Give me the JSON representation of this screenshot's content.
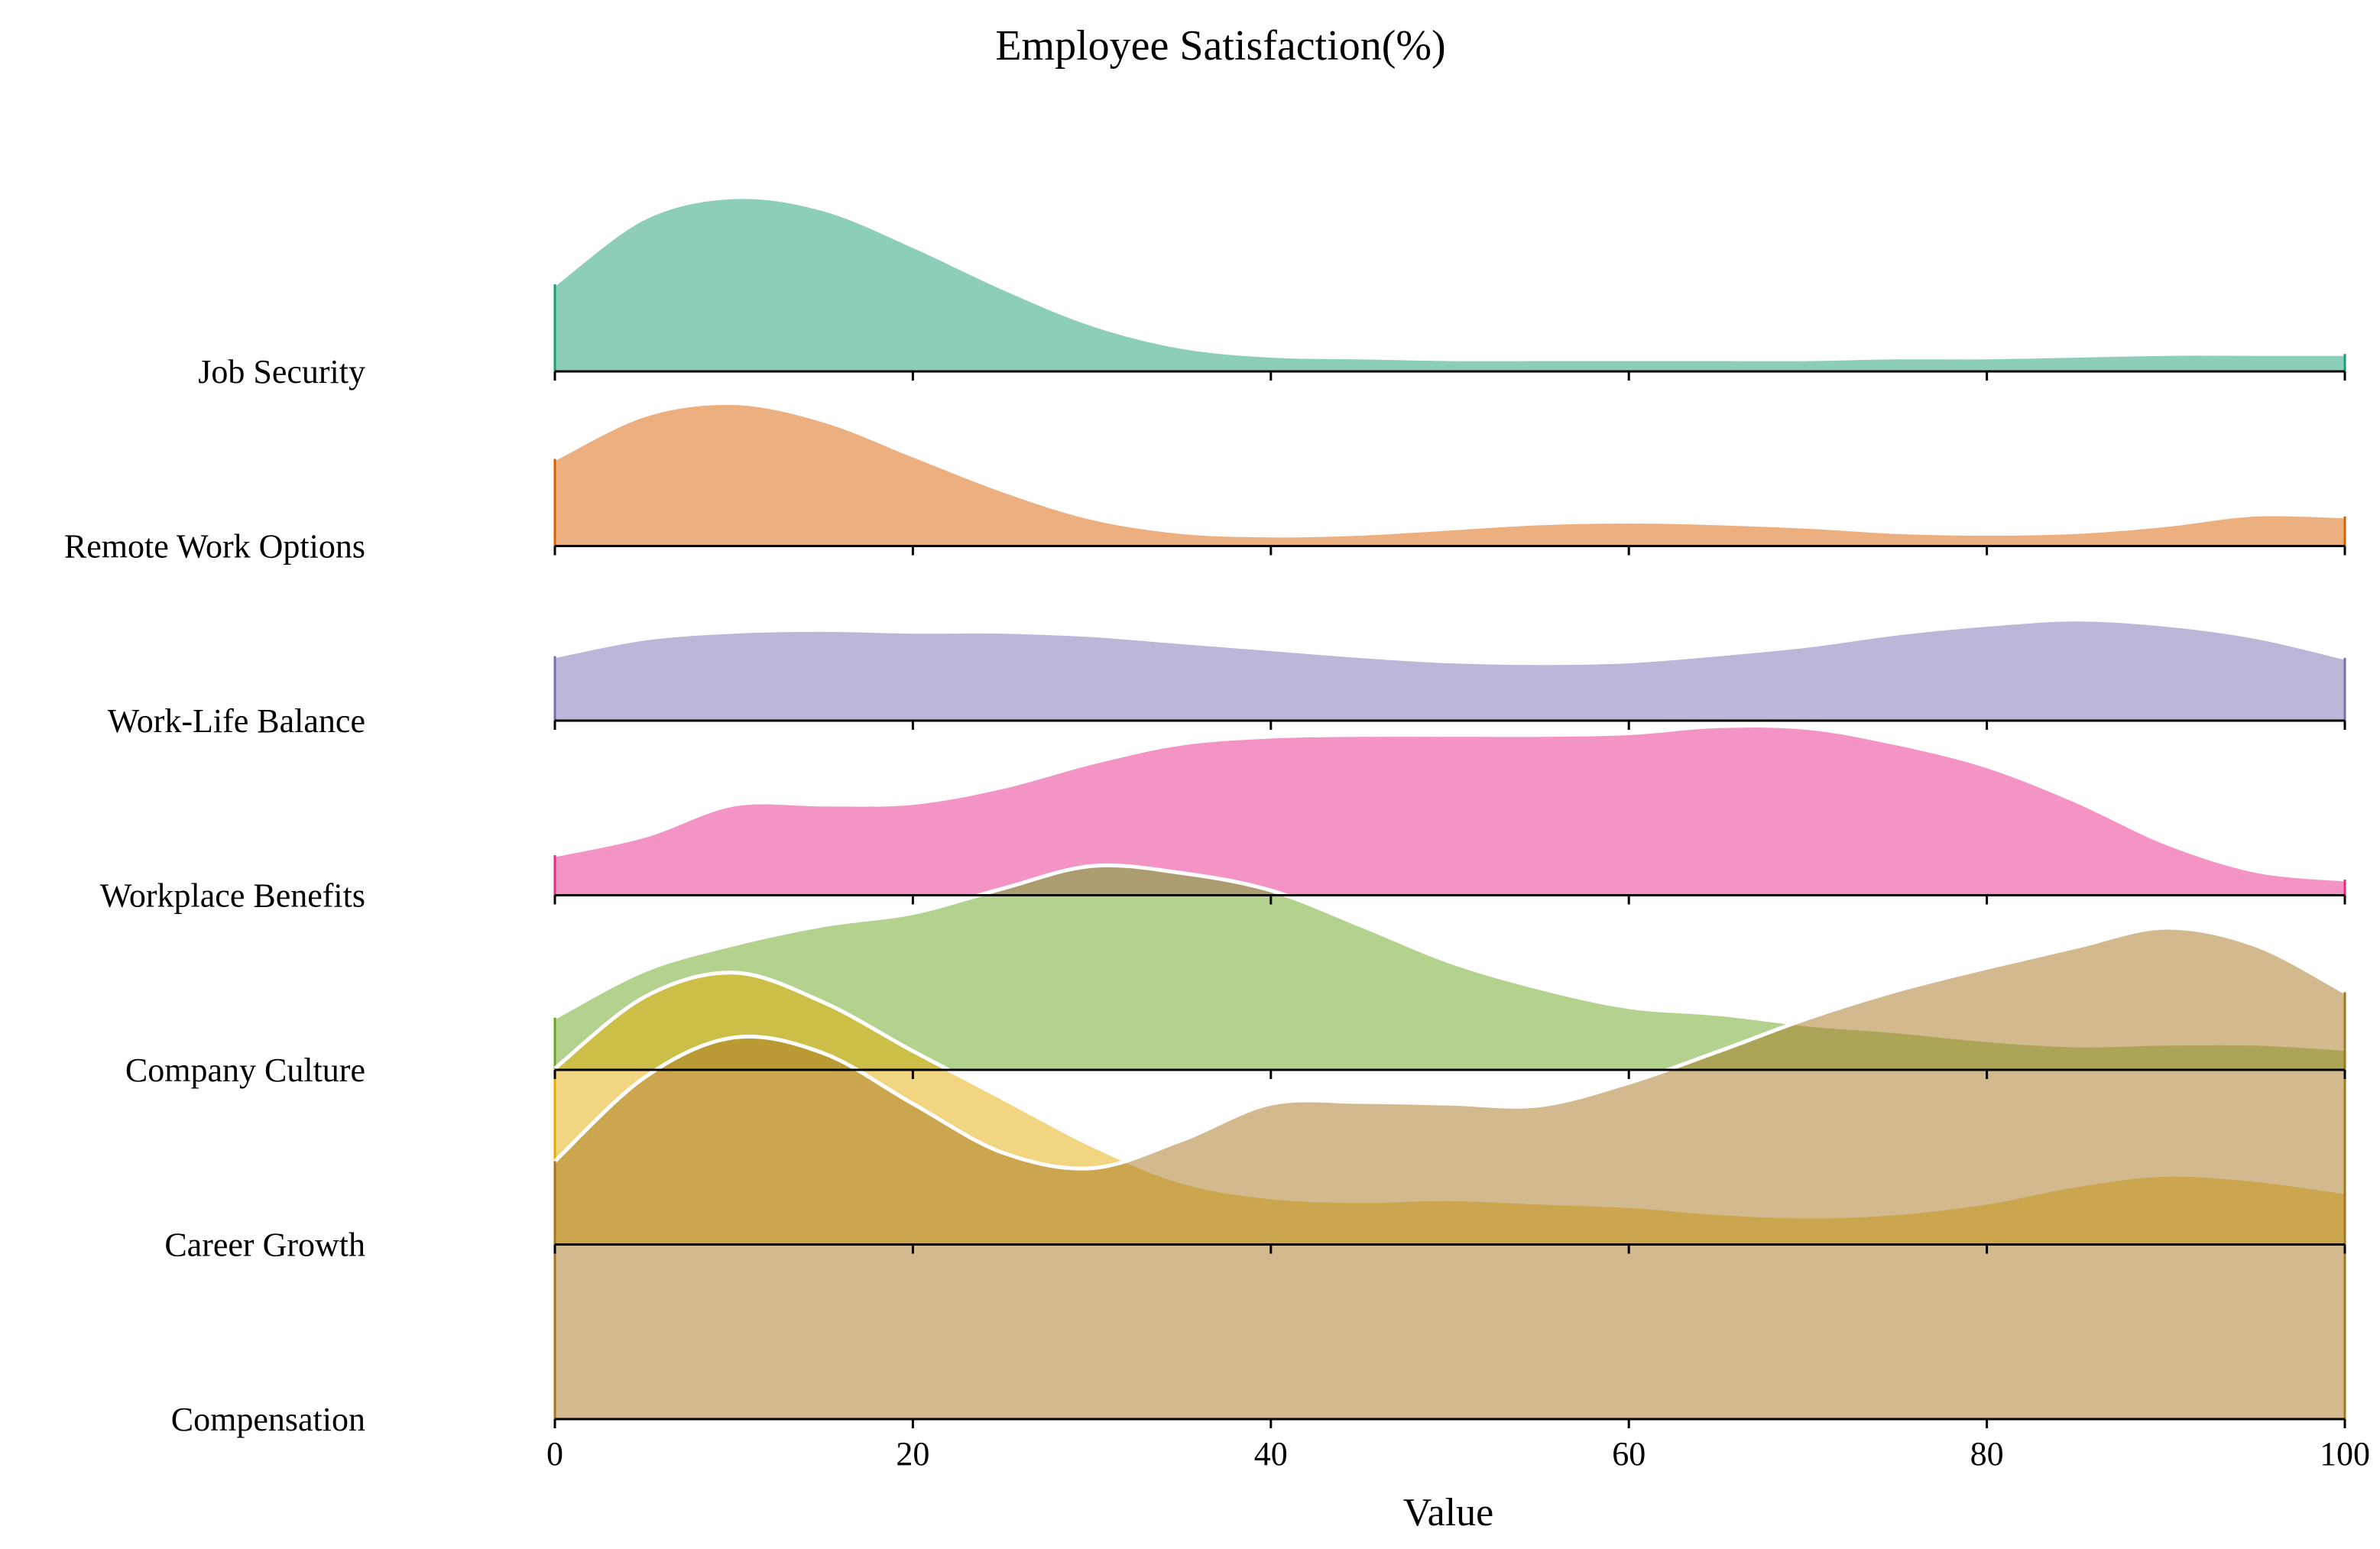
{
  "chart_data": {
    "type": "area",
    "title": "Employee Satisfaction(%)",
    "xlabel": "Value",
    "ylabel": "",
    "xlim": [
      0,
      100
    ],
    "x_ticks": [
      0,
      20,
      40,
      60,
      80,
      100
    ],
    "x_tick_labels": [
      "0",
      "20",
      "40",
      "60",
      "80",
      "100"
    ],
    "grid": false,
    "legend": "none",
    "x": [
      0,
      5,
      10,
      15,
      20,
      25,
      30,
      35,
      40,
      45,
      50,
      55,
      60,
      65,
      70,
      75,
      80,
      85,
      90,
      95,
      100
    ],
    "series": [
      {
        "name": "Job Security",
        "color": "#1b9e77",
        "values": [
          0.5,
          0.88,
          1.0,
          0.93,
          0.72,
          0.48,
          0.27,
          0.14,
          0.09,
          0.08,
          0.07,
          0.07,
          0.07,
          0.07,
          0.07,
          0.08,
          0.08,
          0.09,
          0.1,
          0.1,
          0.1
        ]
      },
      {
        "name": "Remote Work Options",
        "color": "#d95f02",
        "values": [
          0.5,
          0.75,
          0.82,
          0.72,
          0.52,
          0.32,
          0.16,
          0.08,
          0.06,
          0.07,
          0.1,
          0.13,
          0.14,
          0.13,
          0.11,
          0.08,
          0.07,
          0.08,
          0.12,
          0.18,
          0.17
        ]
      },
      {
        "name": "Work-Life Balance",
        "color": "#7570b3",
        "values": [
          0.37,
          0.47,
          0.51,
          0.52,
          0.51,
          0.51,
          0.49,
          0.45,
          0.41,
          0.37,
          0.34,
          0.33,
          0.34,
          0.38,
          0.43,
          0.5,
          0.55,
          0.58,
          0.55,
          0.48,
          0.36
        ]
      },
      {
        "name": "Workplace Benefits",
        "color": "#e7298a",
        "values": [
          0.23,
          0.34,
          0.52,
          0.52,
          0.53,
          0.62,
          0.76,
          0.87,
          0.91,
          0.92,
          0.92,
          0.92,
          0.93,
          0.97,
          0.96,
          0.87,
          0.74,
          0.54,
          0.3,
          0.14,
          0.09
        ]
      },
      {
        "name": "Company Culture",
        "color": "#66a61e",
        "values": [
          0.3,
          0.57,
          0.72,
          0.83,
          0.9,
          1.04,
          1.17,
          1.13,
          1.03,
          0.83,
          0.62,
          0.47,
          0.36,
          0.32,
          0.26,
          0.22,
          0.17,
          0.14,
          0.15,
          0.15,
          0.12
        ]
      },
      {
        "name": "Career Growth",
        "color": "#e6ab02",
        "values": [
          1.01,
          1.42,
          1.56,
          1.39,
          1.11,
          0.84,
          0.57,
          0.36,
          0.27,
          0.25,
          0.26,
          0.24,
          0.22,
          0.18,
          0.16,
          0.18,
          0.24,
          0.34,
          0.4,
          0.37,
          0.3
        ]
      },
      {
        "name": "Compensation",
        "color": "#a6761d",
        "values": [
          1.48,
          1.96,
          2.19,
          2.1,
          1.81,
          1.53,
          1.44,
          1.6,
          1.81,
          1.82,
          1.81,
          1.8,
          1.93,
          2.11,
          2.3,
          2.46,
          2.59,
          2.71,
          2.82,
          2.72,
          2.45
        ]
      }
    ]
  }
}
